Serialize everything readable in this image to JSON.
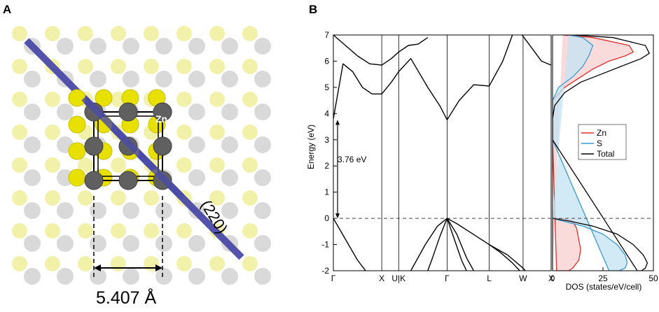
{
  "panel_a": {
    "label": "A",
    "plane_label": "(220)",
    "atom_zn_label": "Zn",
    "atom_s_label": "S",
    "lattice_constant_label": "5.407 Å",
    "colors": {
      "zn": "#606060",
      "s": "#e8e000",
      "plane": "#4a4aa8"
    }
  },
  "panel_b": {
    "label": "B"
  },
  "chart_data": [
    {
      "type": "line",
      "ylabel": "Energy (eV)",
      "xlabel": "",
      "ylim": [
        -2,
        7
      ],
      "yticks": [
        -2,
        -1,
        0,
        1,
        2,
        3,
        4,
        5,
        6,
        7
      ],
      "k_points": [
        "Γ",
        "X",
        "U|K",
        "Γ",
        "L",
        "W",
        "X"
      ],
      "k_positions": [
        0,
        1,
        1.35,
        2.35,
        3.22,
        3.92,
        4.5
      ],
      "gap_annotation": "3.76 eV",
      "fermi_level": 0,
      "series": [
        {
          "x": [
            0,
            0.25,
            0.5,
            0.75,
            1
          ],
          "y": [
            0,
            -0.8,
            -1.6,
            -2.2,
            -2.6
          ]
        },
        {
          "x": [
            0,
            0.2,
            0.4,
            0.6,
            0.8,
            1
          ],
          "y": [
            3.8,
            5.9,
            5.6,
            5.0,
            4.75,
            4.75
          ]
        },
        {
          "x": [
            1,
            1.2,
            1.35,
            1.6,
            1.95,
            2.2,
            2.35
          ],
          "y": [
            4.75,
            5.2,
            5.6,
            6.1,
            5.0,
            4.3,
            3.76
          ]
        },
        {
          "x": [
            2.35,
            2.6,
            2.9,
            3.22,
            3.5,
            3.7
          ],
          "y": [
            3.76,
            4.5,
            5.1,
            5.05,
            6.0,
            7.0
          ]
        },
        {
          "x": [
            0,
            0.25,
            0.5,
            0.75,
            1
          ],
          "y": [
            7,
            6.6,
            6.2,
            5.9,
            5.85
          ]
        },
        {
          "x": [
            1,
            1.2,
            1.35,
            1.55,
            1.75,
            1.95
          ],
          "y": [
            5.85,
            6.1,
            6.35,
            6.6,
            6.65,
            6.9
          ]
        },
        {
          "x": [
            3.9,
            4.1,
            4.3,
            4.5
          ],
          "y": [
            7.0,
            6.5,
            6.0,
            5.85
          ]
        },
        {
          "x": [
            2.35,
            2.55,
            2.8,
            3.22,
            3.6,
            3.92,
            4.2,
            4.5
          ],
          "y": [
            0,
            -0.2,
            -0.5,
            -1.0,
            -1.4,
            -1.9,
            -2.5,
            -3.0
          ]
        },
        {
          "x": [
            2.35,
            2.55,
            2.75,
            2.9
          ],
          "y": [
            0,
            -0.6,
            -1.5,
            -2.0
          ]
        },
        {
          "x": [
            2.35,
            2.5,
            2.65,
            2.75
          ],
          "y": [
            0,
            -0.8,
            -1.6,
            -2.0
          ]
        },
        {
          "x": [
            2.35,
            2.15,
            1.9,
            1.6
          ],
          "y": [
            0,
            -0.3,
            -1.0,
            -2.0
          ]
        },
        {
          "x": [
            2.35,
            2.2,
            2.05,
            1.95
          ],
          "y": [
            0,
            -0.7,
            -1.5,
            -2.0
          ]
        },
        {
          "x": [
            3.22,
            3.45,
            3.7,
            3.85
          ],
          "y": [
            -1.0,
            -1.3,
            -1.7,
            -2.0
          ]
        }
      ]
    },
    {
      "type": "area",
      "xlabel": "DOS (states/eV/cell)",
      "xlim": [
        0,
        50
      ],
      "xticks": [
        0,
        25,
        50
      ],
      "ylim": [
        -2,
        7
      ],
      "legend": {
        "position": "right",
        "entries": [
          "Zn",
          "S",
          "Total"
        ]
      },
      "series": [
        {
          "name": "Zn",
          "color": "#e0302a",
          "fill": "#f7cfcf",
          "x": [
            0,
            0,
            0,
            0,
            0,
            5,
            10,
            12,
            13,
            14,
            13,
            10,
            8,
            2,
            0,
            0,
            0,
            0,
            6,
            14,
            20,
            28,
            36,
            40,
            38,
            20,
            5
          ],
          "y": [
            -2,
            -1.5,
            -1,
            -0.5,
            0,
            0,
            -0.1,
            -0.4,
            -0.8,
            -1.2,
            -1.6,
            -1.9,
            -2,
            -2,
            3,
            3.5,
            4,
            4.5,
            5.0,
            5.4,
            5.7,
            6.0,
            6.2,
            6.35,
            6.6,
            6.9,
            7
          ]
        },
        {
          "name": "S",
          "color": "#3a9ad0",
          "fill": "#c3e3f3",
          "x": [
            0,
            5,
            15,
            25,
            32,
            36,
            37,
            36,
            33,
            28,
            0,
            0,
            0,
            3,
            10,
            15,
            18,
            20,
            15,
            8
          ],
          "y": [
            0,
            -0.1,
            -0.3,
            -0.6,
            -1.0,
            -1.4,
            -1.7,
            -1.9,
            -2,
            -2,
            3,
            4,
            4.5,
            5.0,
            5.4,
            5.8,
            6.2,
            6.6,
            6.9,
            7
          ]
        },
        {
          "name": "Total",
          "color": "#000000",
          "x": [
            0,
            8,
            20,
            32,
            40,
            45,
            47,
            46,
            44,
            42,
            0,
            0,
            1,
            6,
            14,
            24,
            34,
            44,
            48,
            46,
            30,
            10
          ],
          "y": [
            0,
            -0.1,
            -0.3,
            -0.6,
            -1.0,
            -1.4,
            -1.7,
            -1.9,
            -2,
            -2,
            3,
            3.8,
            4.3,
            4.8,
            5.2,
            5.5,
            5.8,
            6.1,
            6.3,
            6.6,
            6.9,
            7
          ]
        }
      ]
    }
  ]
}
